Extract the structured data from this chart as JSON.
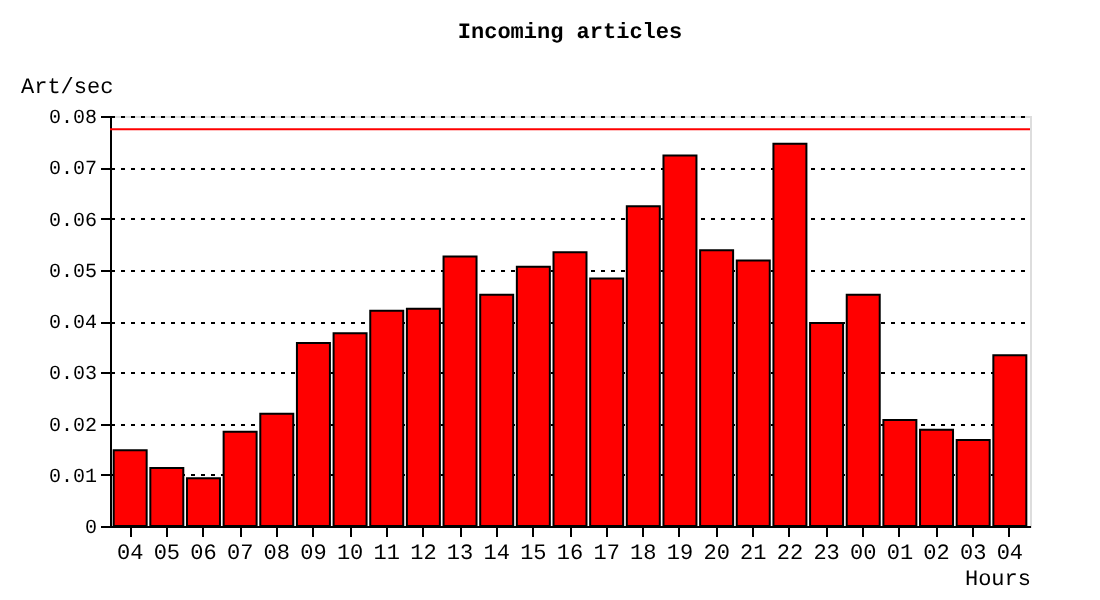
{
  "chart_data": {
    "type": "bar",
    "title": "Incoming articles",
    "ylabel": "Art/sec",
    "xlabel": "Hours",
    "categories": [
      "04",
      "05",
      "06",
      "07",
      "08",
      "09",
      "10",
      "11",
      "12",
      "13",
      "14",
      "15",
      "16",
      "17",
      "18",
      "19",
      "20",
      "21",
      "22",
      "23",
      "00",
      "01",
      "02",
      "03",
      "04"
    ],
    "values": [
      0.0148,
      0.0113,
      0.0093,
      0.0184,
      0.0219,
      0.0357,
      0.0376,
      0.042,
      0.0424,
      0.0526,
      0.0451,
      0.0506,
      0.0534,
      0.0483,
      0.0624,
      0.0723,
      0.0538,
      0.0518,
      0.0746,
      0.0396,
      0.0451,
      0.0207,
      0.0188,
      0.0168,
      0.0333
    ],
    "color": "#ff0000",
    "ylim": [
      0,
      0.08
    ],
    "yticks": [
      0,
      0.01,
      0.02,
      0.03,
      0.04,
      0.05,
      0.06,
      0.07,
      0.08
    ],
    "grid": "y",
    "ref_lines": [
      {
        "axis": "y",
        "value": 0.0774,
        "color": "#ff0000",
        "line_style": "solid"
      }
    ]
  }
}
